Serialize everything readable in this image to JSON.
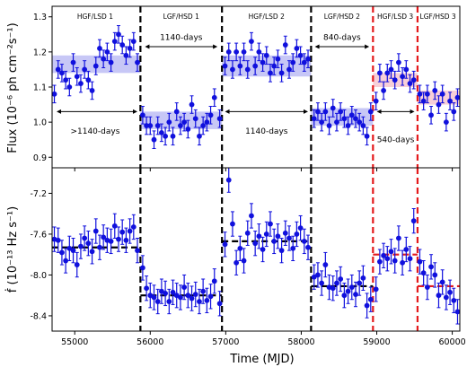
{
  "chart_data": {
    "type": "scatter",
    "x_axis": {
      "title": "Time (MJD)",
      "range": [
        54700,
        60100
      ],
      "ticks": [
        55000,
        56000,
        57000,
        58000,
        59000,
        60000
      ],
      "tick_labels": [
        "55000",
        "56000",
        "57000",
        "58000",
        "59000",
        "60000"
      ]
    },
    "boundaries": [
      {
        "x": 55870,
        "color": "#000000"
      },
      {
        "x": 56950,
        "color": "#000000"
      },
      {
        "x": 58130,
        "color": "#000000"
      },
      {
        "x": 58950,
        "color": "#e41a1c"
      },
      {
        "x": 59540,
        "color": "#e41a1c"
      }
    ],
    "top_panel": {
      "ylabel": "Flux (10⁻⁶ ph cm⁻²s⁻¹)",
      "ylim": [
        0.87,
        1.33
      ],
      "ticks": [
        0.9,
        1.0,
        1.1,
        1.2,
        1.3
      ],
      "tick_labels": [
        "0.9",
        "1.0",
        "1.1",
        "1.2",
        "1.3"
      ],
      "segment_labels": [
        {
          "text": "HGF/LSD 1",
          "x": 55270
        },
        {
          "text": "LGF/HSD 1",
          "x": 56410
        },
        {
          "text": "HGF/LSD 2",
          "x": 57540
        },
        {
          "text": "LGF/HSD 2",
          "x": 58540
        },
        {
          "text": "HGF/LSD 3",
          "x": 59245
        },
        {
          "text": "LGF/HSD 3",
          "x": 59810
        }
      ],
      "bands": [
        {
          "x0": 54700,
          "x1": 55870,
          "y0": 1.14,
          "y1": 1.19,
          "color": "#9999ee"
        },
        {
          "x0": 55870,
          "x1": 56950,
          "y0": 0.98,
          "y1": 1.03,
          "color": "#9999ee"
        },
        {
          "x0": 56950,
          "x1": 58130,
          "y0": 1.13,
          "y1": 1.19,
          "color": "#9999ee"
        },
        {
          "x0": 58130,
          "x1": 58950,
          "y0": 0.99,
          "y1": 1.04,
          "color": "#9999ee"
        },
        {
          "x0": 58950,
          "x1": 59540,
          "y0": 1.1,
          "y1": 1.14,
          "color": "#f0a8b8"
        },
        {
          "x0": 59540,
          "x1": 60100,
          "y0": 1.05,
          "y1": 1.09,
          "color": "#f0a8b8"
        }
      ],
      "annotations": [
        {
          "text": "1140-days",
          "x0": 55930,
          "x1": 56890,
          "y": 1.215,
          "text_y": 1.242,
          "text_x": 56410
        },
        {
          "text": "840-days",
          "x0": 58180,
          "x1": 58900,
          "y": 1.215,
          "text_y": 1.242,
          "text_x": 58540
        },
        {
          "text": ">1140-days",
          "x0": 54760,
          "x1": 55830,
          "y": 1.03,
          "text_y": 0.975,
          "text_x": 55270
        },
        {
          "text": "1140-days",
          "x0": 56990,
          "x1": 58090,
          "y": 1.03,
          "text_y": 0.975,
          "text_x": 57540
        },
        {
          "text": "540-days",
          "x0": 59000,
          "x1": 59500,
          "y": 1.03,
          "text_y": 0.95,
          "text_x": 59250
        }
      ],
      "points": [
        [
          54730,
          1.08,
          0.025
        ],
        [
          54780,
          1.15,
          0.025
        ],
        [
          54830,
          1.14,
          0.025
        ],
        [
          54880,
          1.12,
          0.025
        ],
        [
          54930,
          1.1,
          0.025
        ],
        [
          54980,
          1.17,
          0.025
        ],
        [
          55030,
          1.13,
          0.025
        ],
        [
          55080,
          1.11,
          0.025
        ],
        [
          55130,
          1.15,
          0.025
        ],
        [
          55180,
          1.12,
          0.025
        ],
        [
          55230,
          1.09,
          0.025
        ],
        [
          55280,
          1.16,
          0.025
        ],
        [
          55330,
          1.21,
          0.025
        ],
        [
          55380,
          1.18,
          0.025
        ],
        [
          55430,
          1.2,
          0.025
        ],
        [
          55480,
          1.17,
          0.025
        ],
        [
          55530,
          1.23,
          0.025
        ],
        [
          55580,
          1.25,
          0.025
        ],
        [
          55630,
          1.22,
          0.025
        ],
        [
          55680,
          1.19,
          0.025
        ],
        [
          55730,
          1.21,
          0.025
        ],
        [
          55780,
          1.23,
          0.025
        ],
        [
          55830,
          1.17,
          0.025
        ],
        [
          55900,
          1.02,
          0.025
        ],
        [
          55950,
          0.99,
          0.025
        ],
        [
          56000,
          0.99,
          0.025
        ],
        [
          56050,
          0.95,
          0.025
        ],
        [
          56100,
          0.99,
          0.025
        ],
        [
          56150,
          0.97,
          0.025
        ],
        [
          56200,
          0.96,
          0.025
        ],
        [
          56250,
          1.0,
          0.025
        ],
        [
          56300,
          0.96,
          0.025
        ],
        [
          56350,
          1.03,
          0.025
        ],
        [
          56400,
          0.99,
          0.025
        ],
        [
          56450,
          1.0,
          0.025
        ],
        [
          56500,
          0.98,
          0.025
        ],
        [
          56550,
          1.05,
          0.025
        ],
        [
          56600,
          1.01,
          0.025
        ],
        [
          56650,
          0.96,
          0.025
        ],
        [
          56700,
          0.99,
          0.025
        ],
        [
          56750,
          1.0,
          0.025
        ],
        [
          56800,
          1.02,
          0.025
        ],
        [
          56850,
          1.07,
          0.025
        ],
        [
          56920,
          1.01,
          0.025
        ],
        [
          56990,
          1.16,
          0.025
        ],
        [
          57040,
          1.2,
          0.025
        ],
        [
          57090,
          1.15,
          0.025
        ],
        [
          57140,
          1.2,
          0.025
        ],
        [
          57190,
          1.16,
          0.025
        ],
        [
          57240,
          1.2,
          0.025
        ],
        [
          57290,
          1.15,
          0.025
        ],
        [
          57340,
          1.23,
          0.025
        ],
        [
          57390,
          1.16,
          0.025
        ],
        [
          57440,
          1.2,
          0.025
        ],
        [
          57490,
          1.17,
          0.025
        ],
        [
          57540,
          1.19,
          0.025
        ],
        [
          57590,
          1.14,
          0.025
        ],
        [
          57640,
          1.16,
          0.025
        ],
        [
          57690,
          1.18,
          0.025
        ],
        [
          57740,
          1.14,
          0.025
        ],
        [
          57790,
          1.22,
          0.025
        ],
        [
          57840,
          1.15,
          0.025
        ],
        [
          57890,
          1.17,
          0.025
        ],
        [
          57940,
          1.21,
          0.025
        ],
        [
          57990,
          1.19,
          0.025
        ],
        [
          58040,
          1.17,
          0.025
        ],
        [
          58090,
          1.18,
          0.025
        ],
        [
          58170,
          1.01,
          0.025
        ],
        [
          58220,
          1.03,
          0.025
        ],
        [
          58270,
          1.0,
          0.025
        ],
        [
          58320,
          1.03,
          0.025
        ],
        [
          58370,
          0.99,
          0.025
        ],
        [
          58420,
          1.04,
          0.025
        ],
        [
          58470,
          1.0,
          0.025
        ],
        [
          58520,
          1.03,
          0.025
        ],
        [
          58570,
          1.01,
          0.025
        ],
        [
          58620,
          0.99,
          0.025
        ],
        [
          58670,
          1.02,
          0.025
        ],
        [
          58720,
          1.01,
          0.025
        ],
        [
          58770,
          1.0,
          0.025
        ],
        [
          58820,
          0.99,
          0.025
        ],
        [
          58870,
          0.96,
          0.025
        ],
        [
          58920,
          1.03,
          0.025
        ],
        [
          58990,
          1.06,
          0.025
        ],
        [
          59040,
          1.14,
          0.025
        ],
        [
          59090,
          1.09,
          0.025
        ],
        [
          59140,
          1.14,
          0.025
        ],
        [
          59190,
          1.15,
          0.025
        ],
        [
          59240,
          1.12,
          0.025
        ],
        [
          59290,
          1.17,
          0.025
        ],
        [
          59340,
          1.13,
          0.025
        ],
        [
          59390,
          1.15,
          0.025
        ],
        [
          59440,
          1.11,
          0.025
        ],
        [
          59490,
          1.12,
          0.025
        ],
        [
          59570,
          1.08,
          0.025
        ],
        [
          59620,
          1.06,
          0.025
        ],
        [
          59670,
          1.08,
          0.025
        ],
        [
          59720,
          1.02,
          0.025
        ],
        [
          59770,
          1.09,
          0.025
        ],
        [
          59820,
          1.05,
          0.025
        ],
        [
          59870,
          1.08,
          0.025
        ],
        [
          59920,
          1.0,
          0.025
        ],
        [
          59970,
          1.06,
          0.025
        ],
        [
          60020,
          1.03,
          0.025
        ],
        [
          60070,
          1.07,
          0.025
        ]
      ]
    },
    "bottom_panel": {
      "ylabel": "ḟ (10⁻¹³ Hz s⁻¹)",
      "ylim": [
        -8.55,
        -6.95
      ],
      "ticks": [
        -8.4,
        -8.0,
        -7.6,
        -7.2
      ],
      "tick_labels": [
        "-8.4",
        "-8.0",
        "-7.6",
        "-7.2"
      ],
      "levels": [
        {
          "x0": 54700,
          "x1": 55870,
          "y": -7.73,
          "color": "#000000"
        },
        {
          "x0": 55870,
          "x1": 56950,
          "y": -8.2,
          "color": "#000000"
        },
        {
          "x0": 56950,
          "x1": 58130,
          "y": -7.67,
          "color": "#000000"
        },
        {
          "x0": 58130,
          "x1": 58950,
          "y": -8.11,
          "color": "#000000"
        },
        {
          "x0": 58950,
          "x1": 59540,
          "y": -7.8,
          "color": "#e41a1c"
        },
        {
          "x0": 59540,
          "x1": 60100,
          "y": -8.11,
          "color": "#e41a1c"
        }
      ],
      "points": [
        [
          54730,
          -7.65,
          0.12
        ],
        [
          54780,
          -7.66,
          0.12
        ],
        [
          54830,
          -7.78,
          0.12
        ],
        [
          54880,
          -7.86,
          0.12
        ],
        [
          54930,
          -7.74,
          0.12
        ],
        [
          54980,
          -7.76,
          0.12
        ],
        [
          55030,
          -7.9,
          0.12
        ],
        [
          55080,
          -7.72,
          0.12
        ],
        [
          55130,
          -7.64,
          0.12
        ],
        [
          55180,
          -7.69,
          0.12
        ],
        [
          55230,
          -7.77,
          0.12
        ],
        [
          55280,
          -7.57,
          0.12
        ],
        [
          55330,
          -7.73,
          0.12
        ],
        [
          55380,
          -7.63,
          0.12
        ],
        [
          55430,
          -7.66,
          0.12
        ],
        [
          55480,
          -7.67,
          0.12
        ],
        [
          55530,
          -7.52,
          0.12
        ],
        [
          55580,
          -7.65,
          0.12
        ],
        [
          55630,
          -7.58,
          0.12
        ],
        [
          55680,
          -7.66,
          0.12
        ],
        [
          55730,
          -7.57,
          0.12
        ],
        [
          55780,
          -7.53,
          0.12
        ],
        [
          55830,
          -7.76,
          0.12
        ],
        [
          55900,
          -7.93,
          0.12
        ],
        [
          55950,
          -8.13,
          0.12
        ],
        [
          56000,
          -8.2,
          0.12
        ],
        [
          56050,
          -8.22,
          0.12
        ],
        [
          56100,
          -8.26,
          0.12
        ],
        [
          56150,
          -8.16,
          0.12
        ],
        [
          56200,
          -8.18,
          0.12
        ],
        [
          56250,
          -8.26,
          0.12
        ],
        [
          56300,
          -8.17,
          0.12
        ],
        [
          56350,
          -8.2,
          0.12
        ],
        [
          56400,
          -8.22,
          0.12
        ],
        [
          56450,
          -8.12,
          0.12
        ],
        [
          56500,
          -8.2,
          0.12
        ],
        [
          56550,
          -8.23,
          0.12
        ],
        [
          56600,
          -8.19,
          0.12
        ],
        [
          56650,
          -8.26,
          0.12
        ],
        [
          56700,
          -8.16,
          0.12
        ],
        [
          56750,
          -8.25,
          0.12
        ],
        [
          56800,
          -8.21,
          0.12
        ],
        [
          56850,
          -8.06,
          0.12
        ],
        [
          56920,
          -8.28,
          0.12
        ],
        [
          56990,
          -7.7,
          0.12
        ],
        [
          57040,
          -7.07,
          0.12
        ],
        [
          57090,
          -7.5,
          0.12
        ],
        [
          57140,
          -7.88,
          0.12
        ],
        [
          57190,
          -7.74,
          0.12
        ],
        [
          57240,
          -7.86,
          0.12
        ],
        [
          57290,
          -7.59,
          0.12
        ],
        [
          57340,
          -7.42,
          0.12
        ],
        [
          57390,
          -7.69,
          0.12
        ],
        [
          57440,
          -7.62,
          0.12
        ],
        [
          57490,
          -7.75,
          0.12
        ],
        [
          57540,
          -7.6,
          0.12
        ],
        [
          57590,
          -7.5,
          0.12
        ],
        [
          57640,
          -7.67,
          0.12
        ],
        [
          57690,
          -7.62,
          0.12
        ],
        [
          57740,
          -7.76,
          0.12
        ],
        [
          57790,
          -7.59,
          0.12
        ],
        [
          57840,
          -7.64,
          0.12
        ],
        [
          57890,
          -7.74,
          0.12
        ],
        [
          57940,
          -7.6,
          0.12
        ],
        [
          57990,
          -7.54,
          0.12
        ],
        [
          58040,
          -7.67,
          0.12
        ],
        [
          58090,
          -7.73,
          0.12
        ],
        [
          58170,
          -8.02,
          0.12
        ],
        [
          58220,
          -8.0,
          0.12
        ],
        [
          58270,
          -8.08,
          0.12
        ],
        [
          58320,
          -7.9,
          0.12
        ],
        [
          58370,
          -8.12,
          0.12
        ],
        [
          58420,
          -8.13,
          0.12
        ],
        [
          58470,
          -8.08,
          0.12
        ],
        [
          58520,
          -8.04,
          0.12
        ],
        [
          58570,
          -8.2,
          0.12
        ],
        [
          58620,
          -8.16,
          0.12
        ],
        [
          58670,
          -8.12,
          0.12
        ],
        [
          58720,
          -8.19,
          0.12
        ],
        [
          58770,
          -8.08,
          0.12
        ],
        [
          58820,
          -8.03,
          0.12
        ],
        [
          58870,
          -8.3,
          0.12
        ],
        [
          58920,
          -8.24,
          0.12
        ],
        [
          58990,
          -8.14,
          0.12
        ],
        [
          59040,
          -7.87,
          0.12
        ],
        [
          59090,
          -7.81,
          0.12
        ],
        [
          59140,
          -7.84,
          0.12
        ],
        [
          59190,
          -7.77,
          0.12
        ],
        [
          59240,
          -7.86,
          0.12
        ],
        [
          59290,
          -7.64,
          0.12
        ],
        [
          59340,
          -7.88,
          0.12
        ],
        [
          59390,
          -7.75,
          0.12
        ],
        [
          59440,
          -7.84,
          0.12
        ],
        [
          59490,
          -7.47,
          0.12
        ],
        [
          59570,
          -7.87,
          0.12
        ],
        [
          59620,
          -7.98,
          0.12
        ],
        [
          59670,
          -8.12,
          0.12
        ],
        [
          59720,
          -7.92,
          0.12
        ],
        [
          59770,
          -8.0,
          0.12
        ],
        [
          59820,
          -8.2,
          0.12
        ],
        [
          59870,
          -8.07,
          0.12
        ],
        [
          59920,
          -8.22,
          0.12
        ],
        [
          59970,
          -8.17,
          0.12
        ],
        [
          60020,
          -8.25,
          0.12
        ],
        [
          60070,
          -8.36,
          0.12
        ]
      ]
    },
    "marker_color": "#1010dd",
    "grid": false
  }
}
